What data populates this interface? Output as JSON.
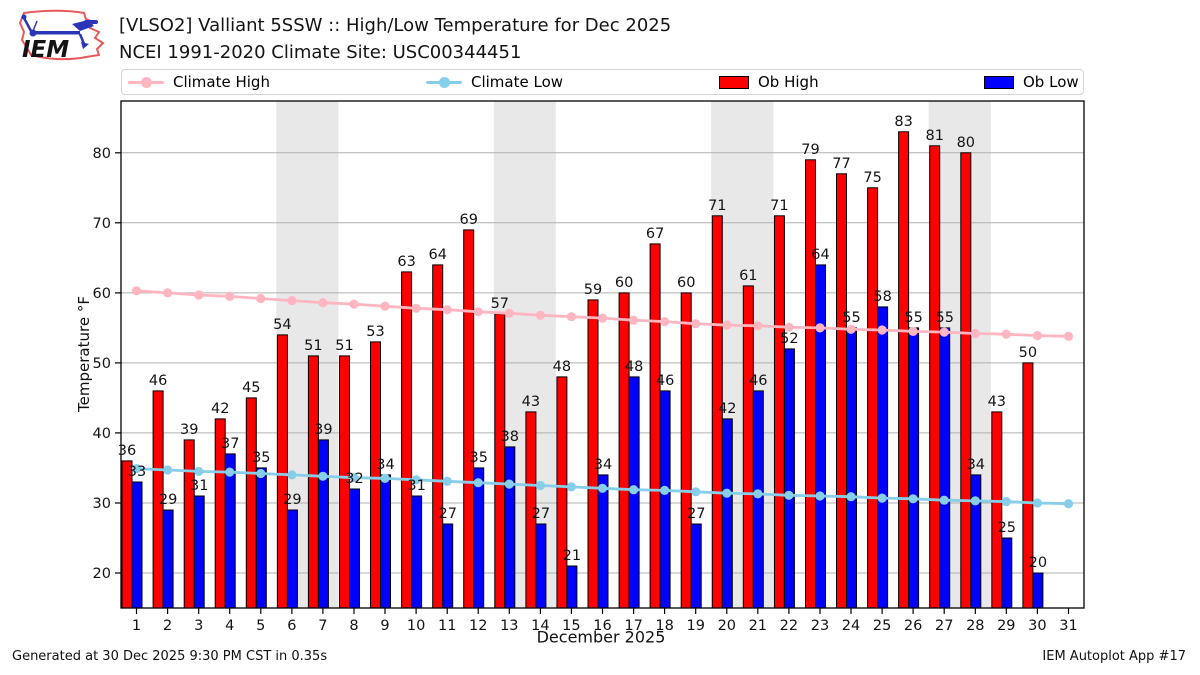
{
  "header": {
    "title_line1": "[VLSO2] Valliant 5SSW :: High/Low Temperature for Dec 2025",
    "title_line2": "NCEI 1991-2020 Climate Site: USC00344451",
    "logo_text": "IEM"
  },
  "legend": {
    "items": [
      {
        "label": "Climate High",
        "type": "line",
        "color": "#FFB6C1"
      },
      {
        "label": "Climate Low",
        "type": "line",
        "color": "#87CEEB"
      },
      {
        "label": "Ob High",
        "type": "patch",
        "color": "#FF0000"
      },
      {
        "label": "Ob Low",
        "type": "patch",
        "color": "#0000FF"
      }
    ]
  },
  "axes": {
    "y_label": "Temperature °F",
    "x_label": "December 2025",
    "y_ticks": [
      20,
      30,
      40,
      50,
      60,
      70,
      80
    ]
  },
  "footer": {
    "generated": "Generated at 30 Dec 2025 9:30 PM CST in 0.35s",
    "app": "IEM Autoplot App #17"
  },
  "chart_data": {
    "type": "bar",
    "title": "[VLSO2] Valliant 5SSW :: High/Low Temperature for Dec 2025",
    "xlabel": "December 2025",
    "ylabel": "Temperature °F",
    "ylim": [
      15,
      87.4
    ],
    "grid": "horizontal",
    "legend_position": "top",
    "days": [
      1,
      2,
      3,
      4,
      5,
      6,
      7,
      8,
      9,
      10,
      11,
      12,
      13,
      14,
      15,
      16,
      17,
      18,
      19,
      20,
      21,
      22,
      23,
      24,
      25,
      26,
      27,
      28,
      29,
      30,
      31
    ],
    "weekend_start_days": [
      6,
      13,
      20,
      27
    ],
    "colors": {
      "ob_high": "#FF0000",
      "ob_low": "#0000FF",
      "climate_high": "#FFB6C1",
      "climate_low": "#87CEEB",
      "weekend_band": "#E8E8E8",
      "gridline": "#B0B0B0",
      "bar_edge": "#000000"
    },
    "series": [
      {
        "name": "Ob High",
        "type": "bar",
        "color": "#FF0000",
        "values": [
          36,
          46,
          39,
          42,
          45,
          54,
          51,
          51,
          53,
          63,
          64,
          69,
          57,
          43,
          48,
          59,
          60,
          67,
          60,
          71,
          61,
          71,
          79,
          77,
          75,
          83,
          81,
          80,
          43,
          50,
          null
        ]
      },
      {
        "name": "Ob Low",
        "type": "bar",
        "color": "#0000FF",
        "values": [
          33,
          29,
          31,
          37,
          35,
          29,
          39,
          32,
          34,
          31,
          27,
          35,
          38,
          27,
          21,
          34,
          48,
          46,
          27,
          42,
          46,
          52,
          64,
          55,
          58,
          55,
          55,
          34,
          25,
          20,
          null
        ]
      },
      {
        "name": "Climate High",
        "type": "line",
        "color": "#FFB6C1",
        "values": [
          60.3,
          60.0,
          59.7,
          59.5,
          59.2,
          58.9,
          58.6,
          58.4,
          58.1,
          57.8,
          57.6,
          57.3,
          57.1,
          56.8,
          56.6,
          56.4,
          56.1,
          55.9,
          55.6,
          55.4,
          55.3,
          55.1,
          55.0,
          54.8,
          54.7,
          54.5,
          54.4,
          54.2,
          54.1,
          53.9,
          53.8
        ]
      },
      {
        "name": "Climate Low",
        "type": "line",
        "color": "#87CEEB",
        "values": [
          34.9,
          34.7,
          34.5,
          34.4,
          34.2,
          34.0,
          33.8,
          33.6,
          33.5,
          33.3,
          33.1,
          32.9,
          32.7,
          32.5,
          32.3,
          32.1,
          31.9,
          31.8,
          31.6,
          31.4,
          31.3,
          31.1,
          31.0,
          30.9,
          30.7,
          30.6,
          30.4,
          30.3,
          30.2,
          30.0,
          29.9
        ]
      }
    ]
  }
}
